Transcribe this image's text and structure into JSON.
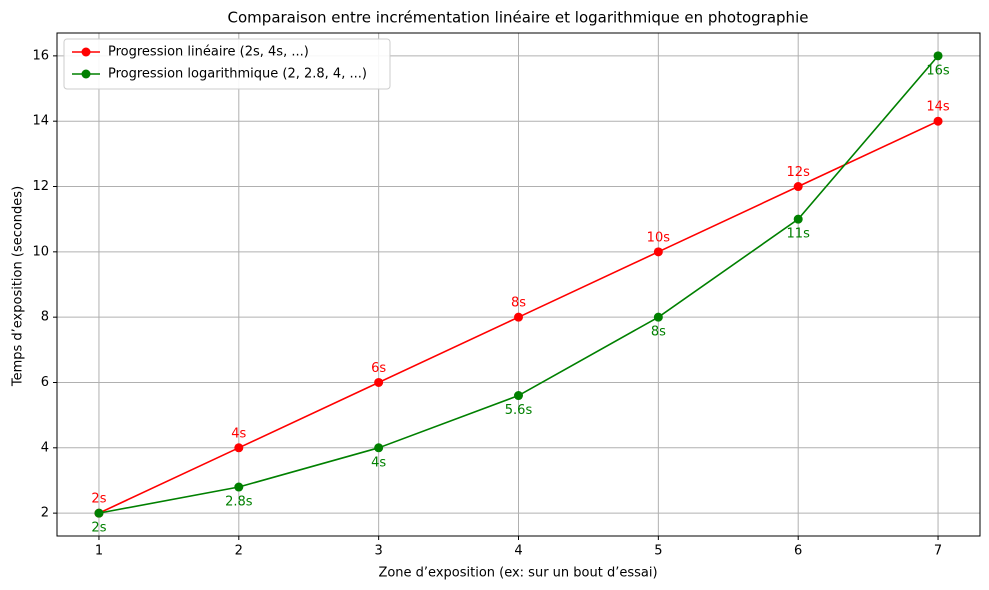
{
  "chart_data": {
    "type": "line",
    "title": "Comparaison entre incrémentation linéaire et logarithmique en photographie",
    "x_label": "Zone d’exposition (ex: sur un bout d’essai)",
    "y_label": "Temps d’exposition (secondes)",
    "x": [
      1,
      2,
      3,
      4,
      5,
      6,
      7
    ],
    "series": [
      {
        "name": "Progression linéaire (2s, 4s, ...)",
        "color": "#ff0000",
        "values": [
          2,
          4,
          6,
          8,
          10,
          12,
          14
        ],
        "value_labels": [
          "2s",
          "4s",
          "6s",
          "8s",
          "10s",
          "12s",
          "14s"
        ],
        "label_position": "above"
      },
      {
        "name": "Progression logarithmique (2, 2.8, 4, ...)",
        "color": "#008000",
        "values": [
          2,
          2.8,
          4,
          5.6,
          8,
          11,
          16
        ],
        "value_labels": [
          "2s",
          "2.8s",
          "4s",
          "5.6s",
          "8s",
          "11s",
          "16s"
        ],
        "label_position": "below"
      }
    ],
    "xlim": [
      0.7,
      7.3
    ],
    "xticks": [
      1,
      2,
      3,
      4,
      5,
      6,
      7
    ],
    "ylim": [
      1.3,
      16.7
    ],
    "yticks": [
      2,
      4,
      6,
      8,
      10,
      12,
      14,
      16
    ],
    "grid": true,
    "legend": "upper left"
  }
}
